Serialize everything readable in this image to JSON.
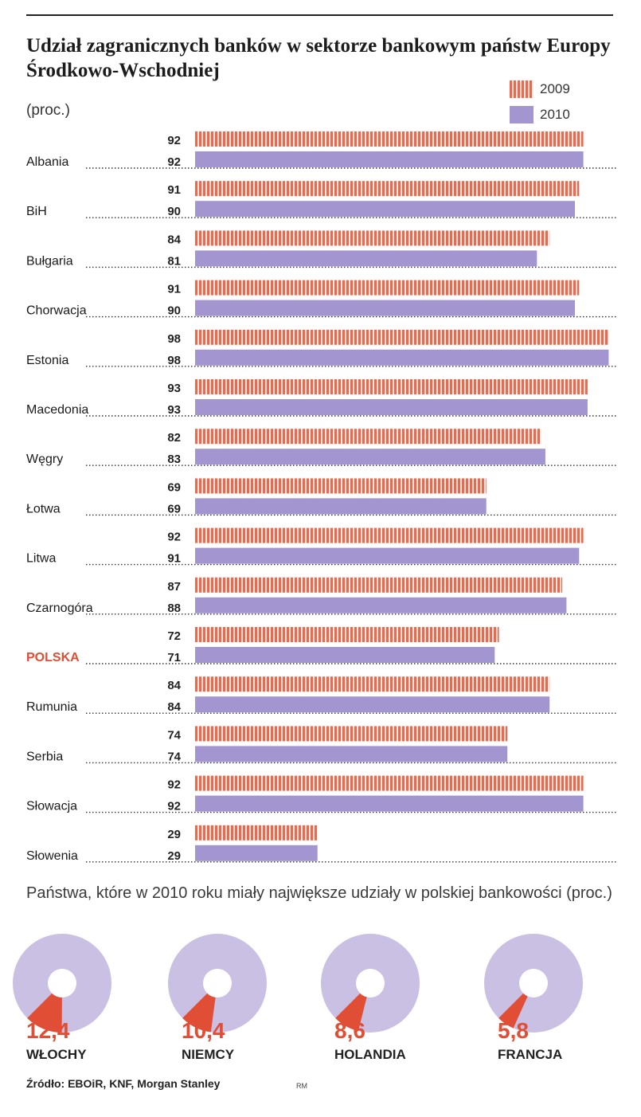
{
  "title": "Udział zagranicznych banków w sektorze bankowym państw Europy Środkowo-Wschodniej",
  "unit": "(proc.)",
  "legend": {
    "y2009": "2009",
    "y2010": "2010"
  },
  "colors": {
    "c2009": "#e96a4f",
    "c2009_bg": "#fde4dc",
    "c2010": "#a395cf",
    "highlight": "#e04e35",
    "donut_bg": "#c9c0e3"
  },
  "chart_data": [
    {
      "type": "bar",
      "orientation": "horizontal",
      "title": "Udział zagranicznych banków w sektorze bankowym państw Europy Środkowo-Wschodniej",
      "unit": "(proc.)",
      "xlim": [
        0,
        100
      ],
      "highlight_category": "POLSKA",
      "categories": [
        "Albania",
        "BiH",
        "Bułgaria",
        "Chorwacja",
        "Estonia",
        "Macedonia",
        "Węgry",
        "Łotwa",
        "Litwa",
        "Czarnogóra",
        "POLSKA",
        "Rumunia",
        "Serbia",
        "Słowacja",
        "Słowenia"
      ],
      "series": [
        {
          "name": "2009",
          "values": [
            92,
            91,
            84,
            91,
            98,
            93,
            82,
            69,
            92,
            87,
            72,
            84,
            74,
            92,
            29
          ]
        },
        {
          "name": "2010",
          "values": [
            92,
            90,
            81,
            90,
            98,
            93,
            83,
            69,
            91,
            88,
            71,
            84,
            74,
            92,
            29
          ]
        }
      ]
    },
    {
      "type": "pie",
      "title": "Państwa, które w 2010 roku miały największe udziały w polskiej bankowości (proc.)",
      "labels": [
        "WŁOCHY",
        "NIEMCY",
        "HOLANDIA",
        "FRANCJA"
      ],
      "values": [
        12.4,
        10.4,
        8.6,
        5.8
      ],
      "value_labels": [
        "12,4",
        "10,4",
        "8,6",
        "5,8"
      ]
    }
  ],
  "donuts_title": "Państwa, które w 2010 roku miały największe udziały w polskiej bankowości (proc.)",
  "source": "Źródło: EBOiR, KNF, Morgan Stanley",
  "author": "RM"
}
